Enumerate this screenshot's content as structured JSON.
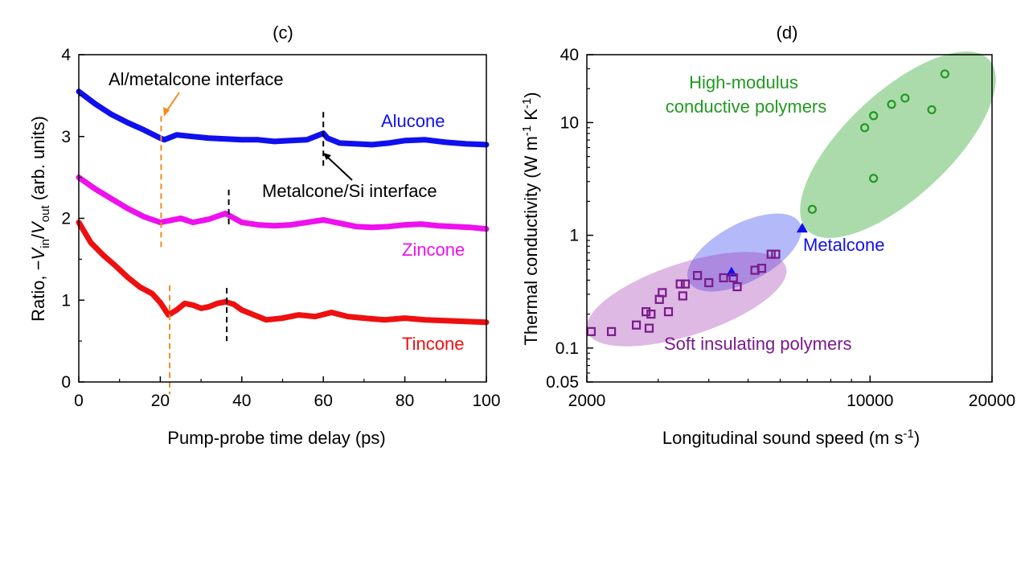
{
  "chart_data": [
    {
      "panel": "(c)",
      "type": "line",
      "xlabel": "Pump-probe time delay (ps)",
      "ylabel": {
        "pre": "Ratio, −",
        "v1": "V",
        "s1": "in",
        "mid": "/",
        "v2": "V",
        "s2": "out",
        "post": " (arb. units)"
      },
      "xlim": [
        0,
        100
      ],
      "ylim": [
        0,
        4
      ],
      "xticks": [
        "0",
        "20",
        "40",
        "60",
        "80",
        "100"
      ],
      "yticks": [
        "0",
        "1",
        "2",
        "3",
        "4"
      ],
      "series": [
        {
          "name": "Alucone",
          "color": "#1010ee",
          "x": [
            0,
            4,
            8,
            12,
            16,
            20,
            21,
            24,
            28,
            32,
            36,
            40,
            44,
            48,
            52,
            56,
            59,
            60,
            61,
            64,
            68,
            72,
            76,
            80,
            85,
            90,
            95,
            100
          ],
          "y": [
            3.55,
            3.4,
            3.27,
            3.17,
            3.08,
            2.98,
            2.96,
            3.02,
            3.0,
            2.98,
            2.97,
            2.96,
            2.96,
            2.94,
            2.95,
            2.96,
            3.02,
            3.04,
            2.98,
            2.92,
            2.91,
            2.9,
            2.92,
            2.95,
            2.96,
            2.93,
            2.91,
            2.9
          ]
        },
        {
          "name": "Zincone",
          "color": "#ee10ee",
          "x": [
            0,
            4,
            8,
            12,
            16,
            20,
            22,
            25,
            28,
            32,
            36,
            40,
            44,
            48,
            52,
            56,
            60,
            64,
            68,
            72,
            76,
            80,
            84,
            88,
            92,
            96,
            100
          ],
          "y": [
            2.5,
            2.36,
            2.24,
            2.12,
            2.02,
            1.95,
            1.97,
            2.0,
            1.95,
            1.99,
            2.06,
            1.95,
            1.92,
            1.91,
            1.92,
            1.95,
            1.98,
            1.94,
            1.9,
            1.89,
            1.9,
            1.92,
            1.93,
            1.91,
            1.9,
            1.89,
            1.87
          ]
        },
        {
          "name": "Tincone",
          "color": "#ee1010",
          "x": [
            0,
            3,
            6,
            9,
            12,
            15,
            18,
            20,
            22,
            24,
            26,
            28,
            30,
            32,
            34,
            36,
            38,
            40,
            43,
            46,
            50,
            54,
            58,
            62,
            66,
            70,
            75,
            80,
            85,
            90,
            95,
            100
          ],
          "y": [
            1.95,
            1.7,
            1.55,
            1.42,
            1.28,
            1.16,
            1.08,
            0.97,
            0.82,
            0.88,
            0.96,
            0.94,
            0.9,
            0.92,
            0.96,
            0.98,
            0.95,
            0.88,
            0.82,
            0.76,
            0.78,
            0.82,
            0.8,
            0.85,
            0.8,
            0.78,
            0.76,
            0.78,
            0.76,
            0.75,
            0.74,
            0.73
          ]
        }
      ],
      "annotations": {
        "al_interface": "Al/metalcone interface",
        "si_interface": "Metalcone/Si interface"
      },
      "marker_lines": {
        "orange": [
          20.2,
          22.3
        ],
        "black": [
          36.8,
          60.0,
          36.3
        ]
      }
    },
    {
      "panel": "(d)",
      "type": "scatter",
      "xscale": "log",
      "yscale": "log",
      "xlabel": {
        "pre": "Longitudinal sound speed (m s",
        "sup": "-1",
        "post": ")"
      },
      "ylabel": {
        "pre": "Thermal conductivity (W m",
        "sup1": "-1",
        "mid": " K",
        "sup2": "-1",
        "post": ")"
      },
      "xlim": [
        2000,
        20000
      ],
      "ylim": [
        0.05,
        40
      ],
      "xticks": [
        "2000",
        "10000",
        "20000"
      ],
      "yticks": [
        "0.05",
        "0.1",
        "1",
        "10",
        "40"
      ],
      "groups": [
        {
          "name": "High-modulus conductive polymers",
          "label_lines": [
            "High-modulus",
            "conductive polymers"
          ],
          "color": "#229922",
          "marker": "circle",
          "points": [
            [
              7200,
              1.7
            ],
            [
              9700,
              9.0
            ],
            [
              10200,
              11.5
            ],
            [
              10200,
              3.2
            ],
            [
              11300,
              14.5
            ],
            [
              12200,
              16.5
            ],
            [
              14200,
              13.0
            ],
            [
              15300,
              27.0
            ]
          ]
        },
        {
          "name": "Metalcone",
          "label_lines": [
            "Metalcone"
          ],
          "color": "#1010ee",
          "marker": "triangle",
          "points": [
            [
              4550,
              0.47
            ],
            [
              6800,
              1.15
            ]
          ]
        },
        {
          "name": "Soft insulating polymers",
          "label_lines": [
            "Soft insulating polymers"
          ],
          "color": "#7a1a8c",
          "marker": "square",
          "points": [
            [
              2050,
              0.14
            ],
            [
              2300,
              0.14
            ],
            [
              2650,
              0.16
            ],
            [
              2800,
              0.21
            ],
            [
              2880,
              0.2
            ],
            [
              2850,
              0.15
            ],
            [
              3180,
              0.21
            ],
            [
              3020,
              0.27
            ],
            [
              3070,
              0.31
            ],
            [
              3450,
              0.29
            ],
            [
              3400,
              0.37
            ],
            [
              3500,
              0.37
            ],
            [
              3750,
              0.44
            ],
            [
              4000,
              0.38
            ],
            [
              4350,
              0.42
            ],
            [
              4600,
              0.42
            ],
            [
              4700,
              0.35
            ],
            [
              5200,
              0.49
            ],
            [
              5400,
              0.51
            ],
            [
              5700,
              0.68
            ],
            [
              5850,
              0.68
            ]
          ]
        }
      ]
    }
  ]
}
